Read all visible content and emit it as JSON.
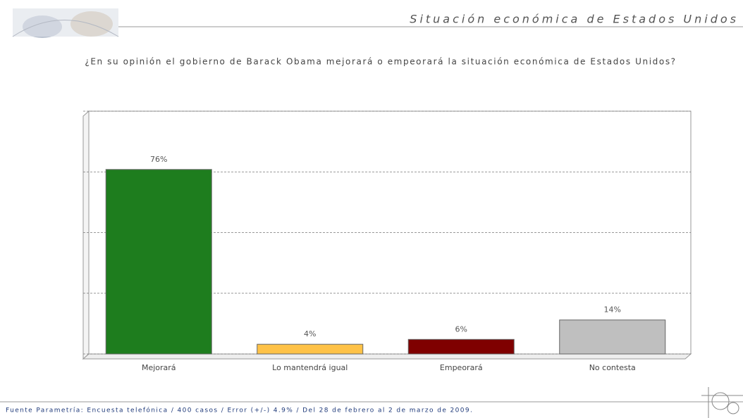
{
  "chart_data": {
    "type": "bar",
    "title": "Situación económica de Estados Unidos",
    "subtitle": "¿En su opinión el gobierno de Barack Obama mejorará o empeorará la situación económica de Estados Unidos?",
    "source": "Fuente Parametría: Encuesta telefónica / 400 casos / Error (+/-) 4.9% / Del 28 de febrero al 2 de marzo de 2009.",
    "categories": [
      "Mejorará",
      "Lo mantendrá igual",
      "Empeorará",
      "No contesta"
    ],
    "values": [
      76,
      4,
      6,
      14
    ],
    "value_labels": [
      "76%",
      "4%",
      "6%",
      "14%"
    ],
    "colors": [
      "#1e7d1e",
      "#ffc247",
      "#7f0000",
      "#bfbfbf"
    ],
    "ylim": [
      0,
      100
    ],
    "yticks": [
      0,
      25,
      50,
      75,
      100
    ],
    "grid": true
  }
}
